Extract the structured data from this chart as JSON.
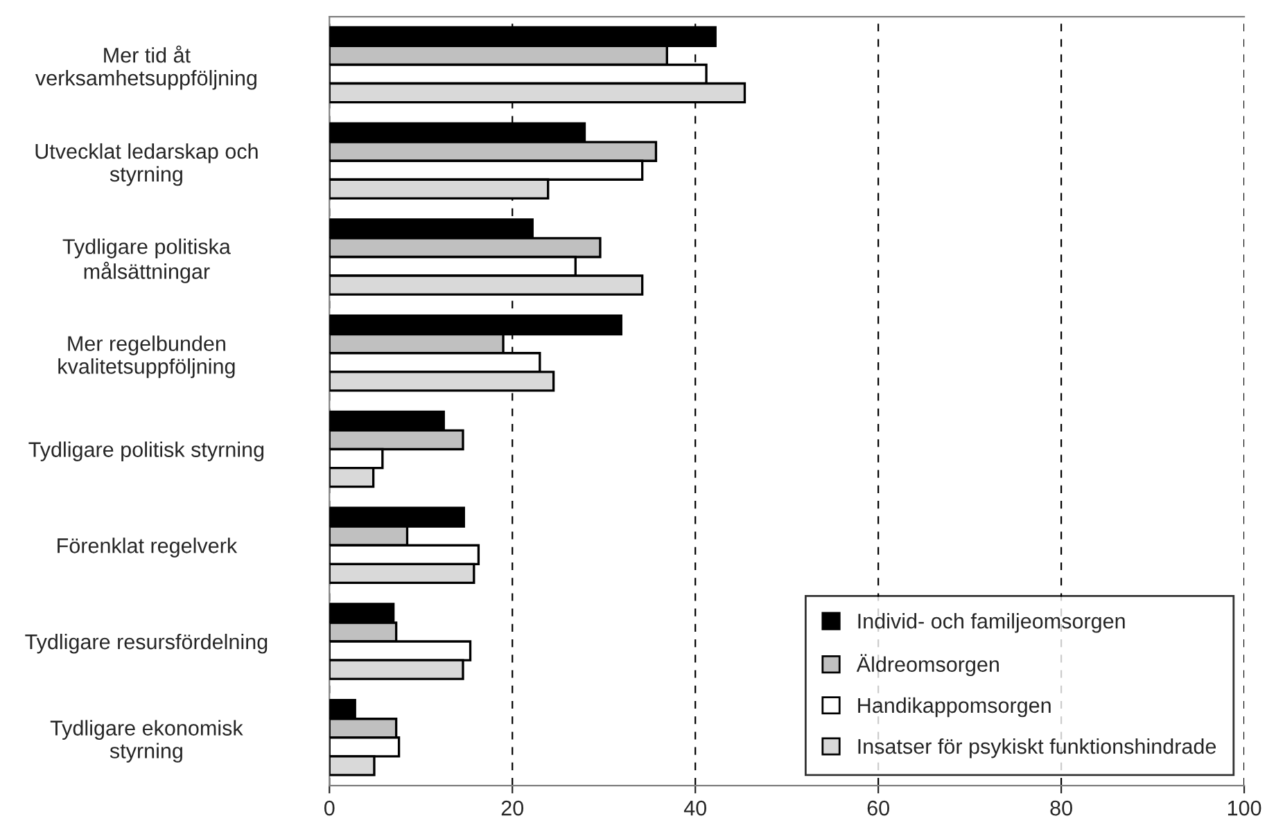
{
  "chart_data": {
    "type": "bar",
    "orientation": "horizontal",
    "categories": [
      "Mer tid åt\nverksamhetsuppföljning",
      "Utvecklat ledarskap och\nstyrning",
      "Tydligare politiska\nmålsättningar",
      "Mer regelbunden\nkvalitetsuppföljning",
      "Tydligare politisk styrning",
      "Förenklat regelverk",
      "Tydligare resursfördelning",
      "Tydligare ekonomisk\nstyrning"
    ],
    "series": [
      {
        "name": "Individ- och familjeomsorgen",
        "color": "#000000",
        "values": [
          42.2,
          27.9,
          22.2,
          31.9,
          12.5,
          14.7,
          7.0,
          2.8
        ]
      },
      {
        "name": "Äldreomsorgen",
        "color": "#c0c0c0",
        "values": [
          36.9,
          35.7,
          29.6,
          19.0,
          14.6,
          8.5,
          7.3,
          7.3
        ]
      },
      {
        "name": "Handikappomsorgen",
        "color": "#ffffff",
        "values": [
          41.2,
          34.2,
          26.9,
          23.0,
          5.8,
          16.3,
          15.4,
          7.6
        ]
      },
      {
        "name": "Insatser för psykiskt funktionshindrade",
        "color": "#d9d9d9",
        "values": [
          45.4,
          23.9,
          34.2,
          24.5,
          4.8,
          15.8,
          14.6,
          4.9
        ]
      }
    ],
    "xlim": [
      0,
      100
    ],
    "xticks": [
      0,
      20,
      40,
      60,
      80,
      100
    ],
    "grid": "x",
    "legend": "bottom right"
  }
}
